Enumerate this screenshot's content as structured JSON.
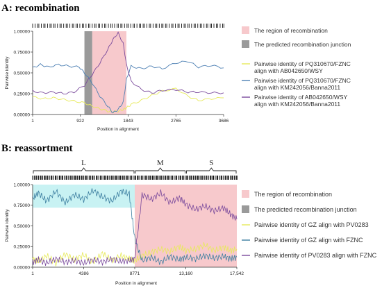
{
  "colors": {
    "region": "#f7c9cc",
    "junction": "#9a9a9a",
    "yellow": "#e7ea5a",
    "blue": "#4c7fb3",
    "purple": "#7a4a9c",
    "blueB": "#3c7ea0",
    "band": "#c8f2f3"
  },
  "chart_data": [
    {
      "type": "line",
      "title": "A: recombination",
      "xlabel": "Position in alignment",
      "ylabel": "Pairwise identity",
      "xlim": [
        1,
        3686
      ],
      "ylim": [
        0,
        1.0
      ],
      "xticks": [
        "1",
        "922",
        "1843",
        "2765",
        "3686"
      ],
      "yticks": [
        "0.00000",
        "0.25000",
        "0.50000",
        "0.75000",
        "1.00000"
      ],
      "recombination_region": [
        1150,
        1810
      ],
      "junction_region": [
        1000,
        1150
      ],
      "series": [
        {
          "name": "Pairwise identity of PQ310670/FZNC align with AB042650/WSY",
          "color_key": "yellow",
          "x": [
            1,
            200,
            400,
            600,
            800,
            1000,
            1150,
            1300,
            1450,
            1550,
            1650,
            1750,
            1810,
            1900,
            2100,
            2300,
            2500,
            2765,
            3000,
            3200,
            3450,
            3686
          ],
          "y": [
            0.21,
            0.19,
            0.2,
            0.18,
            0.16,
            0.14,
            0.1,
            0.07,
            0.04,
            0.03,
            0.04,
            0.06,
            0.08,
            0.12,
            0.17,
            0.23,
            0.28,
            0.31,
            0.22,
            0.17,
            0.19,
            0.2
          ]
        },
        {
          "name": "Pairwise identity of PQ310670/FZNC align with KM242056/Banna2011",
          "color_key": "blue",
          "x": [
            1,
            150,
            300,
            500,
            700,
            900,
            1000,
            1150,
            1300,
            1450,
            1550,
            1650,
            1750,
            1810,
            1900,
            2100,
            2300,
            2500,
            2765,
            3000,
            3200,
            3450,
            3686
          ],
          "y": [
            0.56,
            0.6,
            0.57,
            0.6,
            0.58,
            0.57,
            0.5,
            0.38,
            0.22,
            0.1,
            0.02,
            0.06,
            0.15,
            0.42,
            0.58,
            0.55,
            0.58,
            0.55,
            0.62,
            0.64,
            0.57,
            0.59,
            0.56
          ]
        },
        {
          "name": "Pairwise identity of AB042650/WSY align with KM242056/Banna2011",
          "color_key": "purple",
          "x": [
            1,
            200,
            400,
            600,
            800,
            1000,
            1150,
            1300,
            1450,
            1550,
            1650,
            1750,
            1810,
            1900,
            2100,
            2300,
            2500,
            2765,
            3000,
            3200,
            3450,
            3686
          ],
          "y": [
            0.28,
            0.26,
            0.27,
            0.25,
            0.27,
            0.35,
            0.48,
            0.62,
            0.78,
            0.9,
            0.98,
            0.85,
            0.6,
            0.4,
            0.3,
            0.26,
            0.29,
            0.3,
            0.27,
            0.27,
            0.26,
            0.26
          ]
        }
      ],
      "legend": [
        {
          "label": "The region of recombination",
          "color_key": "region",
          "kind": "box"
        },
        {
          "label": "The predicted recombination junction",
          "color_key": "junction",
          "kind": "box"
        },
        {
          "label": "Pairwise identity of PQ310670/FZNC align with AB042650/WSY",
          "color_key": "yellow",
          "kind": "line"
        },
        {
          "label": "Pairwise identity of PQ310670/FZNC align with KM242056/Banna2011",
          "color_key": "blue",
          "kind": "line"
        },
        {
          "label": "Pairwise identity of AB042650/WSY align with KM242056/Banna2011",
          "color_key": "purple",
          "kind": "line"
        }
      ]
    },
    {
      "type": "line",
      "title": "B: reassortment",
      "xlabel": "Position in alignment",
      "ylabel": "Pairwise identity",
      "xlim": [
        1,
        17542
      ],
      "ylim": [
        0,
        1.0
      ],
      "xticks": [
        "1",
        "4386",
        "8771",
        "13,160",
        "17,542"
      ],
      "yticks": [
        "0.00000",
        "0.25000",
        "0.50000",
        "0.75000",
        "1.00000"
      ],
      "segments": [
        {
          "label": "L",
          "start": 1,
          "end": 8771
        },
        {
          "label": "M",
          "start": 8771,
          "end": 13160
        },
        {
          "label": "S",
          "start": 13160,
          "end": 17542
        }
      ],
      "recombination_region": [
        8771,
        17542
      ],
      "series": [
        {
          "name": "Pairwise identity of GZ align with PV0283",
          "color_key": "yellow",
          "x": [
            1,
            500,
            1200,
            2000,
            2800,
            3600,
            4386,
            5200,
            6000,
            6800,
            7600,
            8300,
            8771,
            9400,
            10200,
            11000,
            11800,
            12600,
            13160,
            14000,
            14800,
            15600,
            16400,
            17000,
            17542
          ],
          "y": [
            0.1,
            0.07,
            0.14,
            0.05,
            0.16,
            0.09,
            0.15,
            0.06,
            0.17,
            0.08,
            0.14,
            0.1,
            0.08,
            0.14,
            0.18,
            0.22,
            0.19,
            0.25,
            0.2,
            0.22,
            0.27,
            0.2,
            0.24,
            0.2,
            0.22
          ]
        },
        {
          "name": "Pairwise identity of GZ align with FZNC",
          "color_key": "blueB",
          "x": [
            1,
            500,
            1200,
            2000,
            2800,
            3600,
            4386,
            5200,
            6000,
            6800,
            7600,
            8300,
            8771,
            9400,
            10200,
            11000,
            11800,
            12600,
            13160,
            14000,
            14800,
            15600,
            16400,
            17000,
            17542
          ],
          "y": [
            0.83,
            0.9,
            0.8,
            0.92,
            0.78,
            0.88,
            0.82,
            0.93,
            0.85,
            0.8,
            0.92,
            0.89,
            0.35,
            0.08,
            0.12,
            0.06,
            0.13,
            0.09,
            0.12,
            0.1,
            0.14,
            0.11,
            0.13,
            0.1,
            0.12
          ]
        },
        {
          "name": "Pairwise identity of PV0283 align with FZNC",
          "color_key": "purple",
          "x": [
            1,
            500,
            1200,
            2000,
            2800,
            3600,
            4386,
            5200,
            6000,
            6800,
            7600,
            8300,
            8771,
            9400,
            10200,
            11000,
            11800,
            12600,
            13160,
            14000,
            14800,
            15600,
            16400,
            17000,
            17542
          ],
          "y": [
            0.06,
            0.09,
            0.05,
            0.1,
            0.06,
            0.08,
            0.05,
            0.09,
            0.06,
            0.1,
            0.07,
            0.08,
            0.1,
            0.88,
            0.82,
            0.9,
            0.78,
            0.84,
            0.76,
            0.7,
            0.74,
            0.68,
            0.72,
            0.64,
            0.58
          ]
        }
      ],
      "legend": [
        {
          "label": "The region of recombination",
          "color_key": "region",
          "kind": "box"
        },
        {
          "label": "The predicted recombination junction",
          "color_key": "junction",
          "kind": "box"
        },
        {
          "label": "Pairwise identity of GZ align with PV0283",
          "color_key": "yellow",
          "kind": "line"
        },
        {
          "label": "Pairwise identity of GZ align with FZNC",
          "color_key": "blueB",
          "kind": "line"
        },
        {
          "label": "Pairwise identity of PV0283 align with FZNC",
          "color_key": "purple",
          "kind": "line"
        }
      ]
    }
  ]
}
